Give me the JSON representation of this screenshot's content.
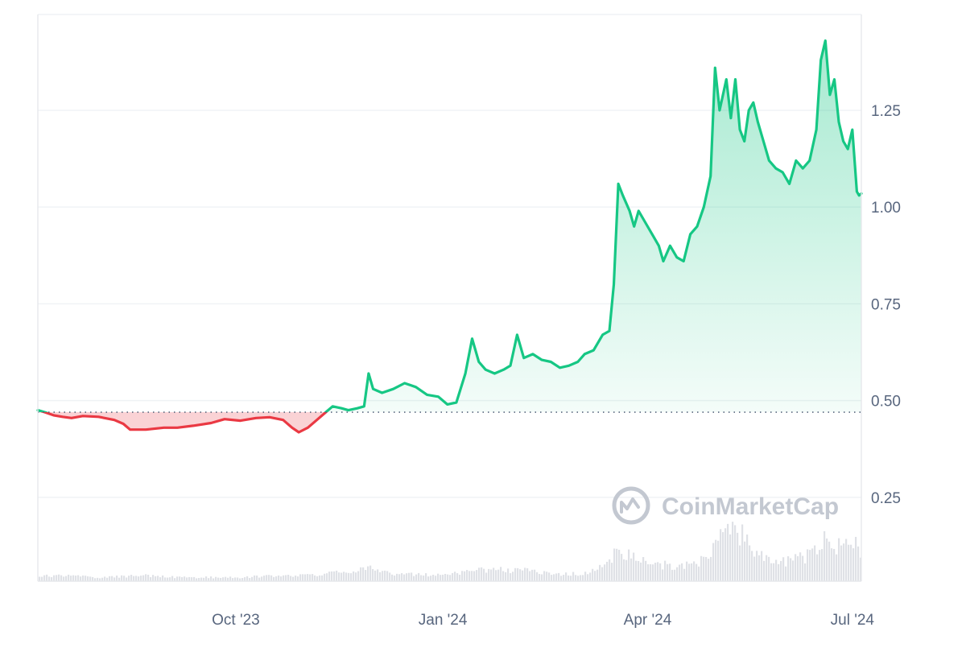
{
  "chart_data": {
    "type": "line",
    "baseline": 0.47,
    "y_ticks": [
      0.25,
      0.5,
      0.75,
      1.0,
      1.25
    ],
    "y_tick_labels": [
      "0.25",
      "0.50",
      "0.75",
      "1.00",
      "1.25"
    ],
    "ylim": [
      0,
      1.5
    ],
    "x_tick_labels": [
      {
        "label": "Oct '23",
        "date": "2023-10-01"
      },
      {
        "label": "Jan '24",
        "date": "2024-01-01"
      },
      {
        "label": "Apr '24",
        "date": "2024-04-01"
      },
      {
        "label": "Jul '24",
        "date": "2024-07-01"
      }
    ],
    "xlim": [
      "2023-07-05",
      "2024-07-05"
    ],
    "colors": {
      "up": "#16c784",
      "down": "#ea3943",
      "grid": "#eff2f5",
      "axis_text": "#58667e",
      "volume": "#c4c8d1",
      "watermark": "#c3c8d1"
    },
    "series": [
      {
        "values": [
          [
            "2023-07-05",
            0.475
          ],
          [
            "2023-07-08",
            0.47
          ],
          [
            "2023-07-12",
            0.462
          ],
          [
            "2023-07-16",
            0.458
          ],
          [
            "2023-07-20",
            0.455
          ],
          [
            "2023-07-25",
            0.46
          ],
          [
            "2023-08-01",
            0.458
          ],
          [
            "2023-08-08",
            0.45
          ],
          [
            "2023-08-12",
            0.44
          ],
          [
            "2023-08-15",
            0.425
          ],
          [
            "2023-08-22",
            0.425
          ],
          [
            "2023-08-30",
            0.43
          ],
          [
            "2023-09-05",
            0.43
          ],
          [
            "2023-09-12",
            0.435
          ],
          [
            "2023-09-20",
            0.442
          ],
          [
            "2023-09-26",
            0.452
          ],
          [
            "2023-10-03",
            0.448
          ],
          [
            "2023-10-10",
            0.455
          ],
          [
            "2023-10-16",
            0.457
          ],
          [
            "2023-10-22",
            0.45
          ],
          [
            "2023-10-26",
            0.43
          ],
          [
            "2023-10-29",
            0.418
          ],
          [
            "2023-11-02",
            0.43
          ],
          [
            "2023-11-06",
            0.45
          ],
          [
            "2023-11-10",
            0.47
          ],
          [
            "2023-11-13",
            0.485
          ],
          [
            "2023-11-17",
            0.48
          ],
          [
            "2023-11-20",
            0.475
          ],
          [
            "2023-11-24",
            0.48
          ],
          [
            "2023-11-27",
            0.485
          ],
          [
            "2023-11-29",
            0.57
          ],
          [
            "2023-12-01",
            0.53
          ],
          [
            "2023-12-05",
            0.52
          ],
          [
            "2023-12-10",
            0.53
          ],
          [
            "2023-12-15",
            0.545
          ],
          [
            "2023-12-20",
            0.535
          ],
          [
            "2023-12-25",
            0.515
          ],
          [
            "2023-12-30",
            0.51
          ],
          [
            "2024-01-03",
            0.49
          ],
          [
            "2024-01-07",
            0.495
          ],
          [
            "2024-01-11",
            0.57
          ],
          [
            "2024-01-14",
            0.66
          ],
          [
            "2024-01-17",
            0.6
          ],
          [
            "2024-01-20",
            0.58
          ],
          [
            "2024-01-24",
            0.57
          ],
          [
            "2024-01-28",
            0.58
          ],
          [
            "2024-01-31",
            0.59
          ],
          [
            "2024-02-03",
            0.67
          ],
          [
            "2024-02-06",
            0.61
          ],
          [
            "2024-02-10",
            0.62
          ],
          [
            "2024-02-14",
            0.605
          ],
          [
            "2024-02-18",
            0.6
          ],
          [
            "2024-02-22",
            0.585
          ],
          [
            "2024-02-26",
            0.59
          ],
          [
            "2024-03-01",
            0.6
          ],
          [
            "2024-03-04",
            0.62
          ],
          [
            "2024-03-08",
            0.63
          ],
          [
            "2024-03-12",
            0.67
          ],
          [
            "2024-03-15",
            0.68
          ],
          [
            "2024-03-17",
            0.8
          ],
          [
            "2024-03-19",
            1.06
          ],
          [
            "2024-03-21",
            1.03
          ],
          [
            "2024-03-24",
            0.99
          ],
          [
            "2024-03-26",
            0.95
          ],
          [
            "2024-03-28",
            0.99
          ],
          [
            "2024-03-31",
            0.96
          ],
          [
            "2024-04-03",
            0.93
          ],
          [
            "2024-04-06",
            0.9
          ],
          [
            "2024-04-08",
            0.86
          ],
          [
            "2024-04-11",
            0.9
          ],
          [
            "2024-04-14",
            0.87
          ],
          [
            "2024-04-17",
            0.86
          ],
          [
            "2024-04-20",
            0.93
          ],
          [
            "2024-04-23",
            0.95
          ],
          [
            "2024-04-26",
            1.0
          ],
          [
            "2024-04-29",
            1.08
          ],
          [
            "2024-05-01",
            1.36
          ],
          [
            "2024-05-03",
            1.25
          ],
          [
            "2024-05-06",
            1.33
          ],
          [
            "2024-05-08",
            1.23
          ],
          [
            "2024-05-10",
            1.33
          ],
          [
            "2024-05-12",
            1.2
          ],
          [
            "2024-05-14",
            1.17
          ],
          [
            "2024-05-16",
            1.25
          ],
          [
            "2024-05-18",
            1.27
          ],
          [
            "2024-05-20",
            1.22
          ],
          [
            "2024-05-22",
            1.18
          ],
          [
            "2024-05-25",
            1.12
          ],
          [
            "2024-05-28",
            1.1
          ],
          [
            "2024-05-31",
            1.09
          ],
          [
            "2024-06-03",
            1.06
          ],
          [
            "2024-06-06",
            1.12
          ],
          [
            "2024-06-09",
            1.1
          ],
          [
            "2024-06-12",
            1.12
          ],
          [
            "2024-06-15",
            1.2
          ],
          [
            "2024-06-17",
            1.38
          ],
          [
            "2024-06-19",
            1.43
          ],
          [
            "2024-06-21",
            1.29
          ],
          [
            "2024-06-23",
            1.33
          ],
          [
            "2024-06-25",
            1.22
          ],
          [
            "2024-06-27",
            1.17
          ],
          [
            "2024-06-29",
            1.15
          ],
          [
            "2024-07-01",
            1.2
          ],
          [
            "2024-07-02",
            1.12
          ],
          [
            "2024-07-03",
            1.04
          ],
          [
            "2024-07-04",
            1.03
          ],
          [
            "2024-07-05",
            1.035
          ]
        ]
      }
    ],
    "volume": [
      [
        "2023-07-15",
        0.03
      ],
      [
        "2023-08-01",
        0.02
      ],
      [
        "2023-08-20",
        0.03
      ],
      [
        "2023-09-10",
        0.02
      ],
      [
        "2023-10-01",
        0.02
      ],
      [
        "2023-10-20",
        0.03
      ],
      [
        "2023-11-05",
        0.03
      ],
      [
        "2023-11-15",
        0.05
      ],
      [
        "2023-11-29",
        0.07
      ],
      [
        "2023-12-10",
        0.04
      ],
      [
        "2024-01-01",
        0.03
      ],
      [
        "2024-01-14",
        0.06
      ],
      [
        "2024-02-03",
        0.06
      ],
      [
        "2024-02-20",
        0.04
      ],
      [
        "2024-03-05",
        0.04
      ],
      [
        "2024-03-15",
        0.1
      ],
      [
        "2024-03-19",
        0.18
      ],
      [
        "2024-03-25",
        0.12
      ],
      [
        "2024-04-05",
        0.09
      ],
      [
        "2024-04-15",
        0.08
      ],
      [
        "2024-04-25",
        0.11
      ],
      [
        "2024-05-01",
        0.2
      ],
      [
        "2024-05-06",
        0.26
      ],
      [
        "2024-05-12",
        0.25
      ],
      [
        "2024-05-18",
        0.16
      ],
      [
        "2024-05-28",
        0.1
      ],
      [
        "2024-06-05",
        0.12
      ],
      [
        "2024-06-12",
        0.14
      ],
      [
        "2024-06-17",
        0.2
      ],
      [
        "2024-06-19",
        0.22
      ],
      [
        "2024-06-23",
        0.18
      ],
      [
        "2024-06-28",
        0.2
      ],
      [
        "2024-07-02",
        0.2
      ],
      [
        "2024-07-04",
        0.14
      ]
    ],
    "watermark": "CoinMarketCap"
  }
}
